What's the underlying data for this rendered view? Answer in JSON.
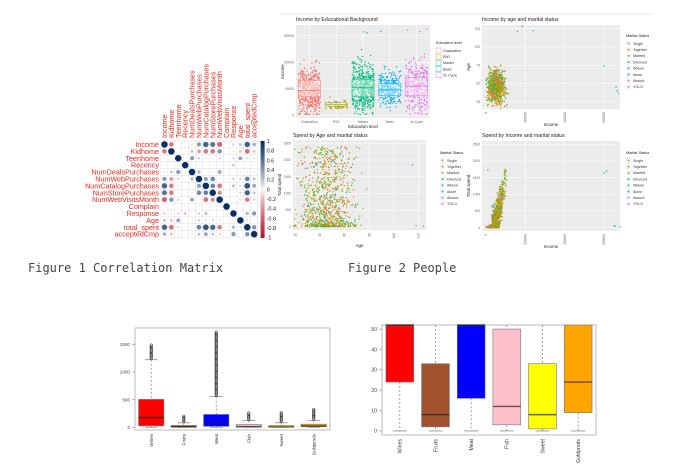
{
  "captions": {
    "figure1": "Figure 1 Correlation Matrix",
    "figure2": "Figure 2 People"
  },
  "chart_data": [
    {
      "type": "heatmap",
      "style": "corrplot-circles",
      "variables": [
        "Income",
        "Kidhome",
        "Teenhome",
        "Recency",
        "NumDealsPurchases",
        "NumWebPurchases",
        "NumCatalogPurchases",
        "NumStorePurchases",
        "NumWebVisitsMonth",
        "Complain",
        "Response",
        "Age",
        "total_spent",
        "acceptedCmp"
      ],
      "upper_triangle": [
        [
          -0.5,
          0,
          0,
          -0.1,
          0.4,
          0.7,
          0.6,
          -0.6,
          0,
          0.15,
          0.2,
          0.7,
          0.3
        ],
        [
          0,
          0,
          0.2,
          -0.35,
          -0.5,
          -0.5,
          0.45,
          0,
          -0.1,
          -0.2,
          -0.55,
          -0.2
        ],
        [
          0,
          0.4,
          0.15,
          -0.1,
          0.05,
          0.13,
          0,
          -0.15,
          0.35,
          -0.13,
          -0.1
        ],
        [
          0,
          0,
          0,
          0,
          0,
          0,
          -0.2,
          0,
          0,
          0
        ],
        [
          0.25,
          -0.01,
          0.07,
          0.35,
          0,
          0,
          0.07,
          -0.07,
          -0.1
        ],
        [
          0.38,
          0.5,
          -0.05,
          0,
          0.15,
          0.15,
          0.52,
          0.2
        ],
        [
          0.52,
          -0.52,
          0,
          0.22,
          0.12,
          0.78,
          0.35
        ],
        [
          -0.43,
          0,
          0.04,
          0.13,
          0.68,
          0.2
        ],
        [
          0,
          0,
          -0.12,
          -0.5,
          -0.15
        ],
        [
          0,
          0,
          0,
          0
        ],
        [
          -0.02,
          0.26,
          0.42
        ],
        [
          0.11,
          0
        ],
        [
          0.45
        ]
      ],
      "colorbar_ticks": [
        "1",
        "0.8",
        "0.6",
        "0.4",
        "0.2",
        "0",
        "-0.2",
        "-0.4",
        "-0.6",
        "-0.8",
        "-1"
      ],
      "colors": {
        "negative": "#67001F",
        "zero": "#FFFFFF",
        "positive": "#053061"
      }
    },
    {
      "type": "scatter",
      "title": "Income by Educational Background",
      "xlabel": "Education level",
      "ylabel": "Income",
      "categories": [
        "Graduation",
        "PhD",
        "Master",
        "Basic",
        "2n Cycle"
      ],
      "box_overlay": [
        {
          "q1": 35000,
          "median": 47000,
          "q3": 66000
        },
        {
          "q1": 17000,
          "median": 20000,
          "q3": 24000
        },
        {
          "q1": 35000,
          "median": 52000,
          "q3": 68000
        },
        {
          "q1": 37000,
          "median": 48000,
          "q3": 60000
        },
        {
          "q1": 37000,
          "median": 55000,
          "q3": 71000
        }
      ],
      "yticks": [
        "0",
        "50000",
        "100000",
        "150000"
      ],
      "ylim": [
        -5000,
        170000
      ],
      "legend_title": "Education level",
      "legend": [
        "Graduation",
        "PhD",
        "Master",
        "Basic",
        "2n Cycle"
      ],
      "colors": [
        "#F8766D",
        "#A3A500",
        "#00BF7D",
        "#00B0F6",
        "#E76BF3"
      ]
    },
    {
      "type": "scatter",
      "title": "Income by age and marital status",
      "xlabel": "Income",
      "ylabel": "Age",
      "xticks": [
        "0",
        "200000",
        "400000",
        "600000"
      ],
      "xlim": [
        -20000,
        680000
      ],
      "yticks": [
        "25",
        "50",
        "75",
        "100",
        "125"
      ],
      "ylim": [
        15,
        130
      ],
      "legend_title": "Marital Status",
      "legend": [
        "Single",
        "Together",
        "Married",
        "Divorced",
        "Widow",
        "Alone",
        "Absurd",
        "YOLO"
      ],
      "colors": [
        "#F8766D",
        "#CD9600",
        "#7CAE00",
        "#00BE67",
        "#00BFC4",
        "#00A9FF",
        "#C77CFF",
        "#FF61CC"
      ]
    },
    {
      "type": "scatter",
      "title": "Spend by Age and marital status",
      "xlabel": "Age",
      "ylabel": "Total spend",
      "xticks": [
        "20",
        "40",
        "60",
        "80",
        "100",
        "120"
      ],
      "xlim": [
        18,
        126
      ],
      "yticks": [
        "0",
        "500",
        "1000",
        "1500",
        "2000",
        "2500"
      ],
      "ylim": [
        -100,
        2600
      ],
      "legend_title": "Marital Status",
      "legend": [
        "Single",
        "Together",
        "Married",
        "Divorced",
        "Widow",
        "Alone",
        "Absurd",
        "YOLO"
      ],
      "colors": [
        "#F8766D",
        "#CD9600",
        "#7CAE00",
        "#00BE67",
        "#00BFC4",
        "#00A9FF",
        "#C77CFF",
        "#FF61CC"
      ]
    },
    {
      "type": "scatter",
      "title": "Spend by Income and marital status",
      "xlabel": "Income",
      "ylabel": "Total spend",
      "xticks": [
        "0",
        "200000",
        "400000",
        "600000"
      ],
      "xlim": [
        -20000,
        680000
      ],
      "yticks": [
        "0",
        "500",
        "1000",
        "1500",
        "2000",
        "2500"
      ],
      "ylim": [
        -100,
        2600
      ],
      "legend_title": "Marital Status",
      "legend": [
        "Single",
        "Together",
        "Married",
        "Divorced",
        "Widow",
        "Alone",
        "Absurd",
        "YOLO"
      ],
      "colors": [
        "#F8766D",
        "#CD9600",
        "#7CAE00",
        "#00BE67",
        "#00BFC4",
        "#00A9FF",
        "#C77CFF",
        "#FF61CC"
      ]
    },
    {
      "type": "box",
      "categories": [
        "Wines",
        "Fruits",
        "Meat",
        "Fish",
        "Sweet",
        "Goldprods"
      ],
      "stats": [
        {
          "min": 0,
          "q1": 24,
          "median": 175,
          "q3": 505,
          "max": 1225,
          "outlier_max": 1490
        },
        {
          "min": 0,
          "q1": 2,
          "median": 8,
          "q3": 33,
          "max": 80,
          "outlier_max": 199
        },
        {
          "min": 0,
          "q1": 16,
          "median": 68,
          "q3": 232,
          "max": 556,
          "outlier_max": 1725
        },
        {
          "min": 0,
          "q1": 3,
          "median": 12,
          "q3": 50,
          "max": 120,
          "outlier_max": 259
        },
        {
          "min": 0,
          "q1": 1,
          "median": 8,
          "q3": 33,
          "max": 81,
          "outlier_max": 263
        },
        {
          "min": 0,
          "q1": 9,
          "median": 24,
          "q3": 56,
          "max": 126,
          "outlier_max": 321
        }
      ],
      "colors": [
        "#FF0000",
        "#A0522D",
        "#0000FF",
        "#FFC0CB",
        "#FFFF00",
        "#FFA500"
      ],
      "yticks": [
        "0",
        "500",
        "1000",
        "1500"
      ],
      "ylim": [
        -50,
        1800
      ]
    },
    {
      "type": "box",
      "categories": [
        "Wines",
        "Fruits",
        "Meat",
        "Fish",
        "Sweet",
        "Goldprods"
      ],
      "stats": [
        {
          "min": 0,
          "q1": 24,
          "median": 175,
          "q3": 505
        },
        {
          "min": 0,
          "q1": 2,
          "median": 8,
          "q3": 33
        },
        {
          "min": 0,
          "q1": 16,
          "median": 68,
          "q3": 232
        },
        {
          "min": 0,
          "q1": 3,
          "median": 12,
          "q3": 50
        },
        {
          "min": 0,
          "q1": 1,
          "median": 8,
          "q3": 33
        },
        {
          "min": 0,
          "q1": 9,
          "median": 24,
          "q3": 56
        }
      ],
      "colors": [
        "#FF0000",
        "#A0522D",
        "#0000FF",
        "#FFC0CB",
        "#FFFF00",
        "#FFA500"
      ],
      "yticks": [
        "0",
        "10",
        "20",
        "30",
        "40",
        "50"
      ],
      "ylim": [
        -2,
        52
      ]
    }
  ]
}
